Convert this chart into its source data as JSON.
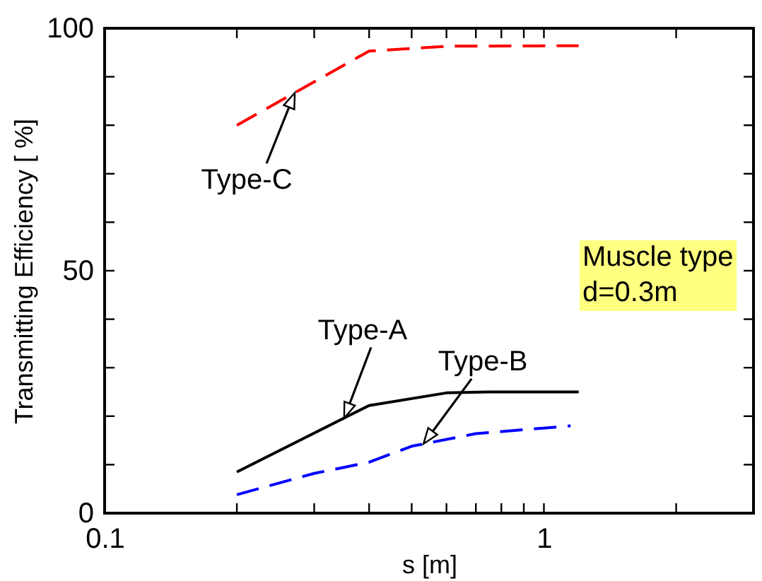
{
  "chart_data": {
    "type": "line",
    "xlabel": "s [m]",
    "ylabel": "Transmitting Efficiency [ %]",
    "log": "x",
    "xlim": [
      0.1,
      3
    ],
    "ylim": [
      0,
      100
    ],
    "xticks": [
      0.1,
      {
        "value": 0.2,
        "label": null
      },
      {
        "value": 0.3,
        "label": null
      },
      {
        "value": 0.4,
        "label": null
      },
      {
        "value": 0.5,
        "label": null
      },
      {
        "value": 0.6,
        "label": null
      },
      {
        "value": 0.7,
        "label": null
      },
      {
        "value": 0.8,
        "label": null
      },
      {
        "value": 0.9,
        "label": null
      },
      1,
      {
        "value": 2,
        "label": null
      },
      {
        "value": 3,
        "label": null
      }
    ],
    "yticks": [
      0,
      {
        "value": 10,
        "label": null
      },
      {
        "value": 20,
        "label": null
      },
      {
        "value": 30,
        "label": null
      },
      {
        "value": 40,
        "label": null
      },
      50,
      {
        "value": 60,
        "label": null
      },
      {
        "value": 70,
        "label": null
      },
      {
        "value": 80,
        "label": null
      },
      {
        "value": 90,
        "label": null
      },
      100
    ],
    "series": [
      {
        "color": "#000000",
        "line_style": "solid",
        "x": [
          0.2,
          0.4,
          0.6,
          0.75,
          1.2
        ],
        "values": [
          8.5,
          22.2,
          24.8,
          25,
          25
        ]
      },
      {
        "color": "#0000ff",
        "line_style": "dashed",
        "x": [
          0.2,
          0.3,
          0.4,
          0.5,
          0.7,
          1.15
        ],
        "values": [
          3.8,
          8.2,
          10.5,
          13.8,
          16.4,
          18
        ]
      },
      {
        "color": "#ff0000",
        "line_style": "dashed",
        "x": [
          0.2,
          0.4,
          0.6,
          1.2
        ],
        "values": [
          80,
          95.3,
          96.3,
          96.4
        ]
      }
    ],
    "annotations": [
      {
        "text": "Type-A",
        "x": 0.351,
        "y": 19.6
      },
      {
        "text": "Type-B",
        "x": 0.532,
        "y": 14.3
      },
      {
        "text": "Type-C",
        "x": 0.271,
        "y": 86.7
      },
      "Muscle type",
      "d=0.3m"
    ]
  }
}
